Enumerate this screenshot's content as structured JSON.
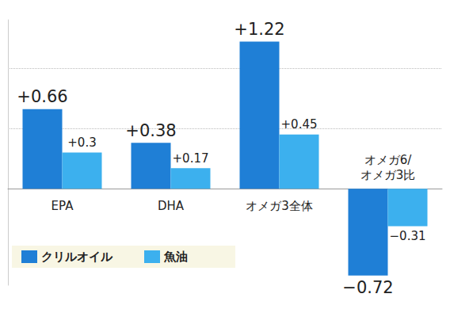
{
  "chart_data": {
    "type": "bar",
    "categories": [
      "EPA",
      "DHA",
      "オメガ3全体",
      "オメガ6/\nオメガ3比"
    ],
    "series": [
      {
        "name": "クリルオイル",
        "color": "#1f7fd6",
        "values": [
          0.66,
          0.38,
          1.22,
          -0.72
        ],
        "value_labels": [
          "+0.66",
          "+0.38",
          "+1.22",
          "−0.72"
        ]
      },
      {
        "name": "魚油",
        "color": "#3cb0ee",
        "values": [
          0.3,
          0.17,
          0.45,
          -0.31
        ],
        "value_labels": [
          "+0.3",
          "+0.17",
          "+0.45",
          "−0.31"
        ]
      }
    ],
    "ylim": [
      -0.8,
      1.4
    ],
    "yticks": [
      0,
      0.5,
      1
    ],
    "grid": true,
    "data_labels": true,
    "tick_labels": "x",
    "legend": "bottom-left"
  }
}
